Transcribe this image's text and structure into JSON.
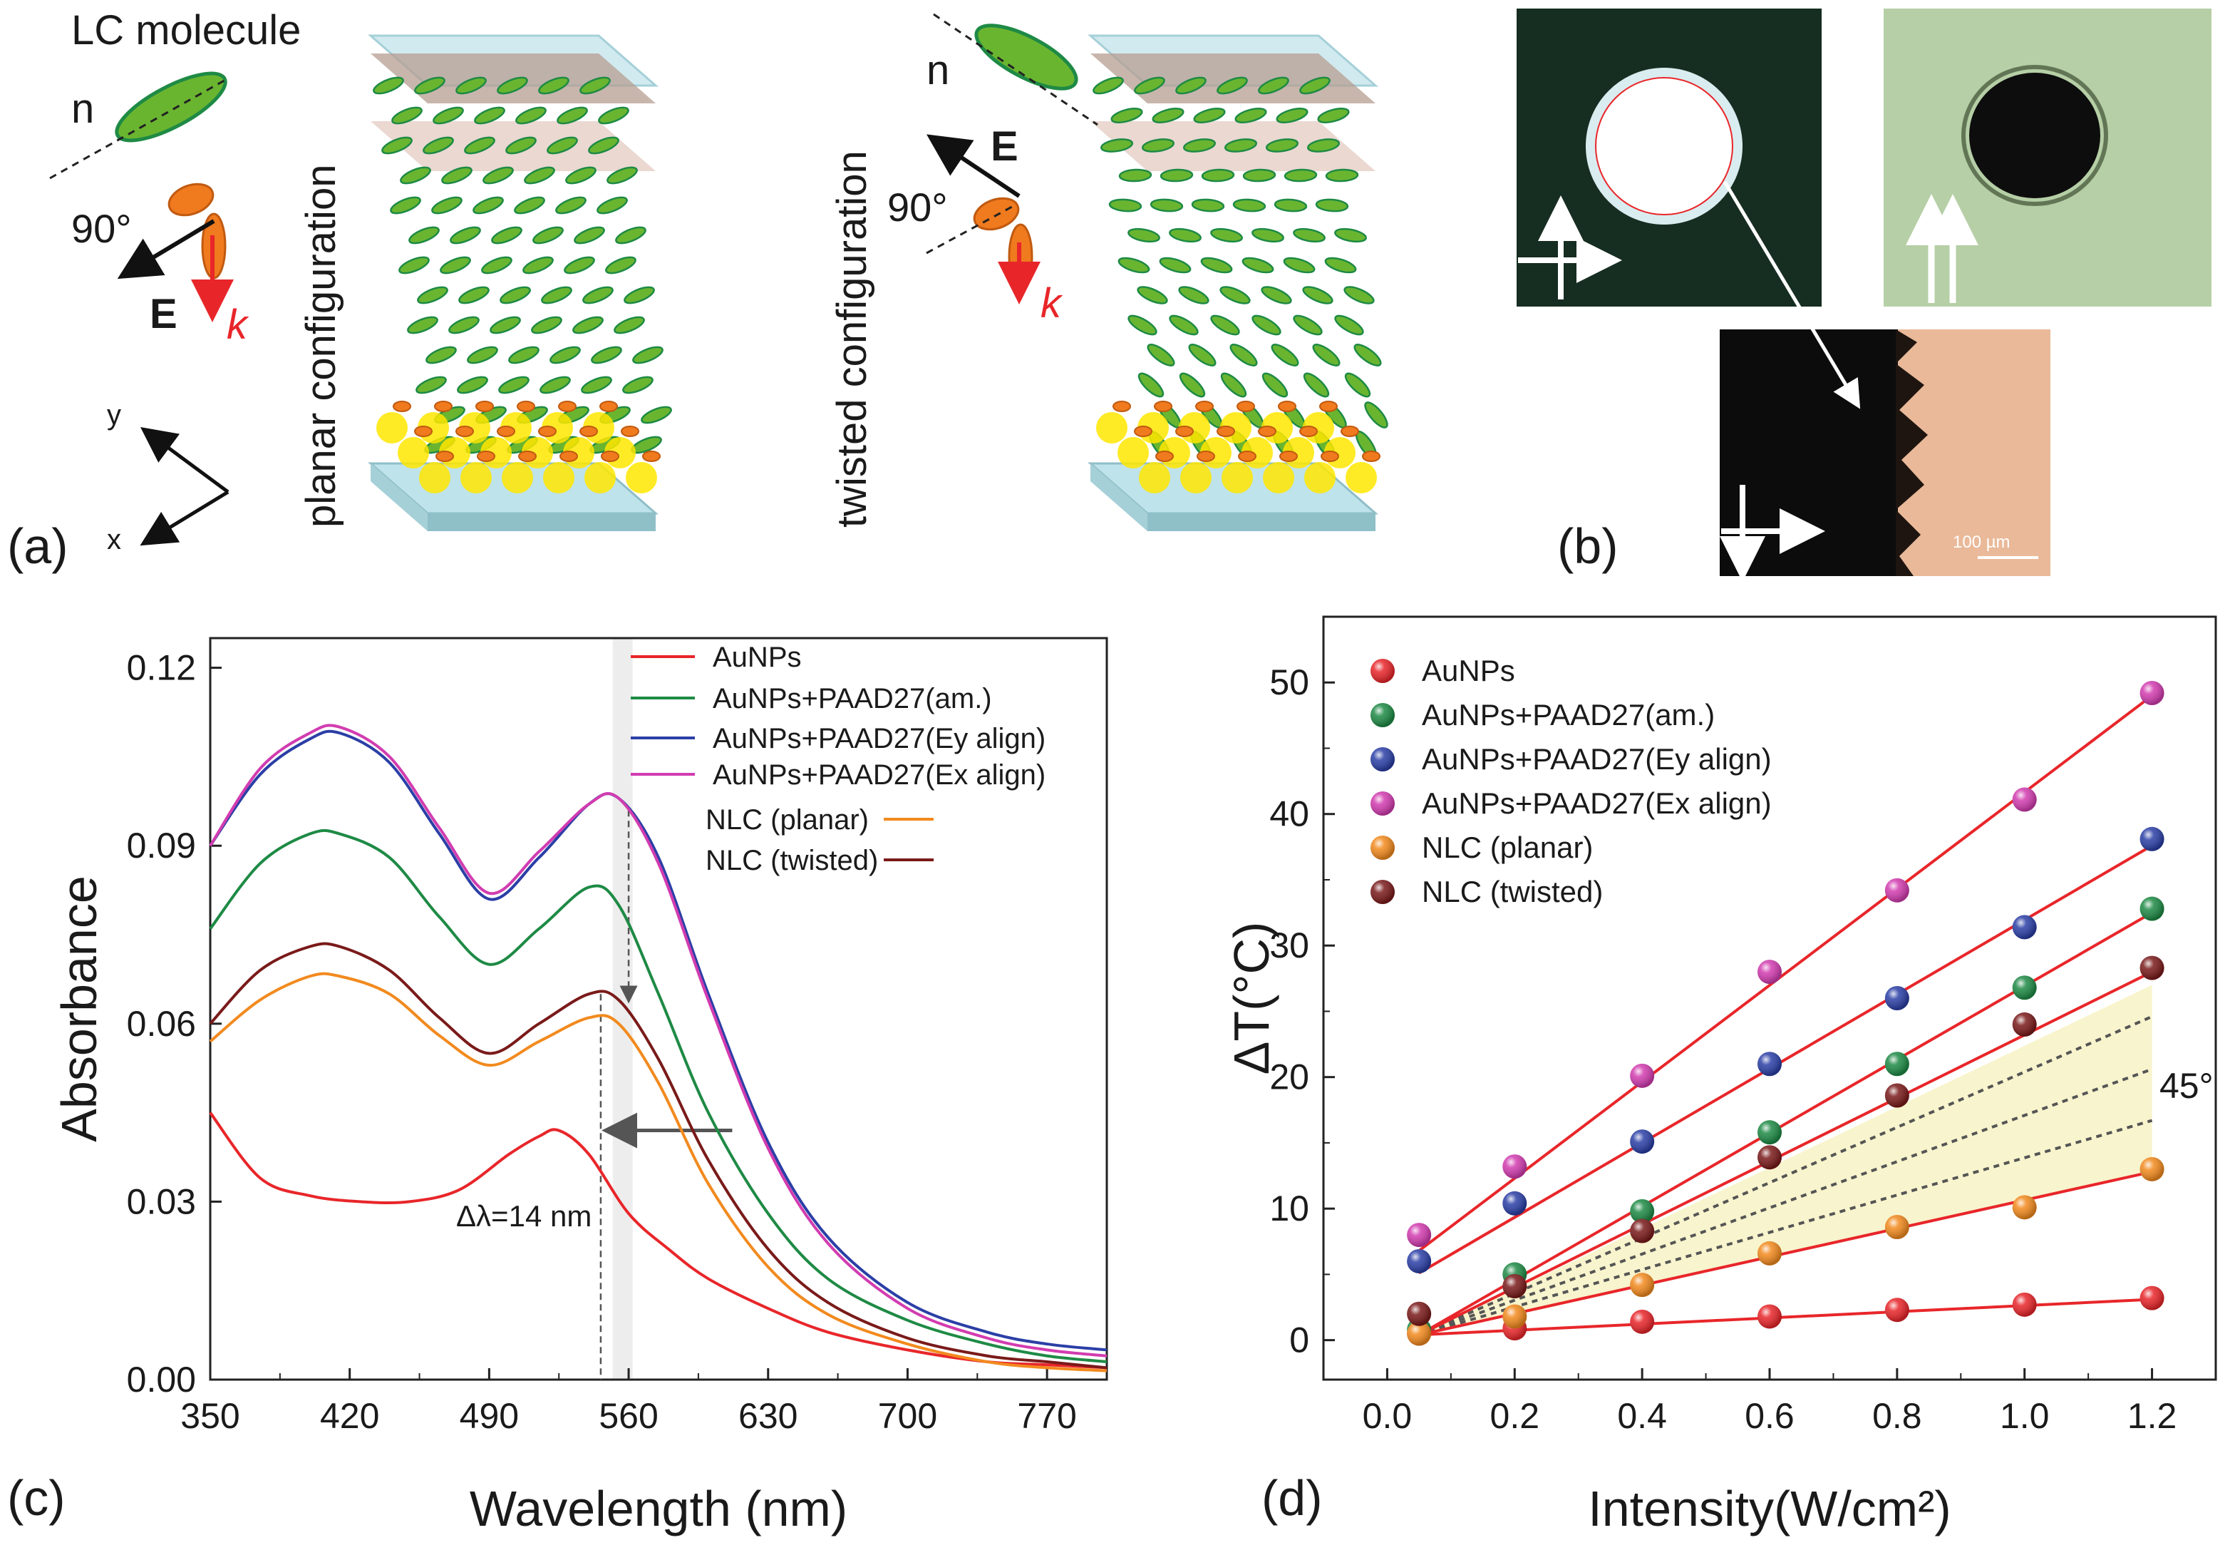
{
  "panel_a": {
    "label": "(a)",
    "lc_title": "LC molecule",
    "n_label": "n",
    "angle_label": "90°",
    "e_label": "E",
    "k_label": "k",
    "y_axis": "y",
    "x_axis": "x",
    "planar_label": "planar configuration",
    "twisted_label": "twisted configuration"
  },
  "panel_b": {
    "label": "(b)",
    "scale_bar": "100 µm"
  },
  "panel_c": {
    "label": "(c)",
    "annotation": "Δλ=14 nm"
  },
  "panel_d": {
    "label": "(d)",
    "angle_annotation": "45°"
  },
  "colors": {
    "aunps": "#e8262a",
    "am": "#1e8a45",
    "ey": "#2b3fa6",
    "ex": "#d23cb0",
    "planar": "#f28a1e",
    "twisted": "#7a1a1a",
    "fit": "#e8262a"
  },
  "chart_data": [
    {
      "type": "line",
      "panel": "c",
      "xlabel": "Wavelength (nm)",
      "ylabel": "Absorbance",
      "xlim": [
        350,
        800
      ],
      "ylim": [
        0,
        0.125
      ],
      "xticks": [
        350,
        420,
        490,
        560,
        630,
        700,
        770
      ],
      "yticks": [
        "0.00",
        "0.03",
        "0.06",
        "0.09",
        "0.12"
      ],
      "series": [
        {
          "name": "AuNPs",
          "color": "#e8262a",
          "x": [
            350,
            375,
            400,
            425,
            450,
            475,
            500,
            515,
            525,
            540,
            560,
            580,
            600,
            630,
            660,
            700,
            740,
            770,
            800
          ],
          "y": [
            0.045,
            0.034,
            0.031,
            0.03,
            0.03,
            0.032,
            0.038,
            0.041,
            0.042,
            0.038,
            0.028,
            0.022,
            0.017,
            0.012,
            0.008,
            0.005,
            0.003,
            0.0025,
            0.002
          ]
        },
        {
          "name": "AuNPs+PAAD27(am.)",
          "color": "#1e8a45",
          "x": [
            350,
            375,
            400,
            415,
            440,
            465,
            490,
            515,
            540,
            555,
            575,
            600,
            630,
            660,
            700,
            740,
            770,
            800
          ],
          "y": [
            0.076,
            0.087,
            0.092,
            0.092,
            0.088,
            0.078,
            0.07,
            0.076,
            0.083,
            0.08,
            0.065,
            0.045,
            0.028,
            0.017,
            0.01,
            0.006,
            0.004,
            0.003
          ]
        },
        {
          "name": "AuNPs+PAAD27(Ey align)",
          "color": "#2b3fa6",
          "x": [
            350,
            375,
            400,
            415,
            440,
            465,
            490,
            515,
            540,
            555,
            575,
            600,
            630,
            660,
            700,
            740,
            770,
            800
          ],
          "y": [
            0.09,
            0.102,
            0.108,
            0.109,
            0.104,
            0.092,
            0.081,
            0.088,
            0.097,
            0.098,
            0.088,
            0.065,
            0.04,
            0.024,
            0.013,
            0.008,
            0.006,
            0.005
          ]
        },
        {
          "name": "AuNPs+PAAD27(Ex align)",
          "color": "#d23cb0",
          "x": [
            350,
            375,
            400,
            415,
            440,
            465,
            490,
            515,
            540,
            555,
            575,
            600,
            630,
            660,
            700,
            740,
            770,
            800
          ],
          "y": [
            0.09,
            0.103,
            0.109,
            0.11,
            0.105,
            0.093,
            0.082,
            0.089,
            0.097,
            0.098,
            0.087,
            0.064,
            0.039,
            0.023,
            0.012,
            0.007,
            0.005,
            0.004
          ]
        },
        {
          "name": "NLC (planar)",
          "color": "#f28a1e",
          "x": [
            350,
            375,
            400,
            415,
            440,
            465,
            490,
            515,
            540,
            555,
            575,
            600,
            630,
            660,
            700,
            740,
            770,
            800
          ],
          "y": [
            0.057,
            0.064,
            0.068,
            0.068,
            0.065,
            0.058,
            0.053,
            0.057,
            0.061,
            0.06,
            0.05,
            0.033,
            0.019,
            0.011,
            0.006,
            0.003,
            0.002,
            0.0015
          ]
        },
        {
          "name": "NLC (twisted)",
          "color": "#7a1a1a",
          "x": [
            350,
            375,
            400,
            415,
            440,
            465,
            490,
            515,
            540,
            555,
            575,
            600,
            630,
            660,
            700,
            740,
            770,
            800
          ],
          "y": [
            0.06,
            0.069,
            0.073,
            0.073,
            0.069,
            0.061,
            0.055,
            0.06,
            0.065,
            0.064,
            0.054,
            0.037,
            0.022,
            0.013,
            0.007,
            0.004,
            0.003,
            0.002
          ]
        }
      ],
      "reference_line_x": 546,
      "peak_line_x": 560,
      "shade_x": [
        552,
        562
      ]
    },
    {
      "type": "scatter",
      "panel": "d",
      "xlabel": "Intensity(W/cm²)",
      "ylabel": "ΔT(°C)",
      "xlim": [
        -0.1,
        1.3
      ],
      "ylim": [
        -3,
        55
      ],
      "xticks": [
        "0.0",
        "0.2",
        "0.4",
        "0.6",
        "0.8",
        "1.0",
        "1.2"
      ],
      "yticks": [
        "0",
        "10",
        "20",
        "30",
        "40",
        "50"
      ],
      "x": [
        0.05,
        0.2,
        0.4,
        0.6,
        0.8,
        1.0,
        1.2
      ],
      "series": [
        {
          "name": "AuNPs",
          "color": "#e8262a",
          "values": [
            0.5,
            0.9,
            1.4,
            1.8,
            2.3,
            2.7,
            3.2
          ],
          "fit": [
            0.4,
            3.1
          ]
        },
        {
          "name": "AuNPs+PAAD27(am.)",
          "color": "#1e8a45",
          "values": [
            0.8,
            5.0,
            9.8,
            15.8,
            21.0,
            26.8,
            32.8
          ],
          "fit": [
            0.4,
            32.5
          ]
        },
        {
          "name": "AuNPs+PAAD27(Ey align)",
          "color": "#2b3fa6",
          "values": [
            6.0,
            10.4,
            15.1,
            21.0,
            26.0,
            31.4,
            38.1
          ],
          "fit": [
            5.1,
            37.6
          ]
        },
        {
          "name": "AuNPs+PAAD27(Ex align)",
          "color": "#d23cb0",
          "values": [
            8.0,
            13.2,
            20.1,
            28.0,
            34.2,
            41.1,
            49.2
          ],
          "fit": [
            6.8,
            49.0
          ]
        },
        {
          "name": "NLC (planar)",
          "color": "#f28a1e",
          "values": [
            0.5,
            1.8,
            4.2,
            6.6,
            8.6,
            10.1,
            13.0
          ],
          "fit": [
            0.4,
            12.8
          ]
        },
        {
          "name": "NLC (twisted)",
          "color": "#7a1a1a",
          "values": [
            2.0,
            4.1,
            8.3,
            13.9,
            18.6,
            24.0,
            28.3
          ],
          "fit": [
            0.4,
            28.0
          ]
        }
      ],
      "dashed_lines_end": [
        24.6,
        20.6,
        16.7
      ]
    }
  ]
}
